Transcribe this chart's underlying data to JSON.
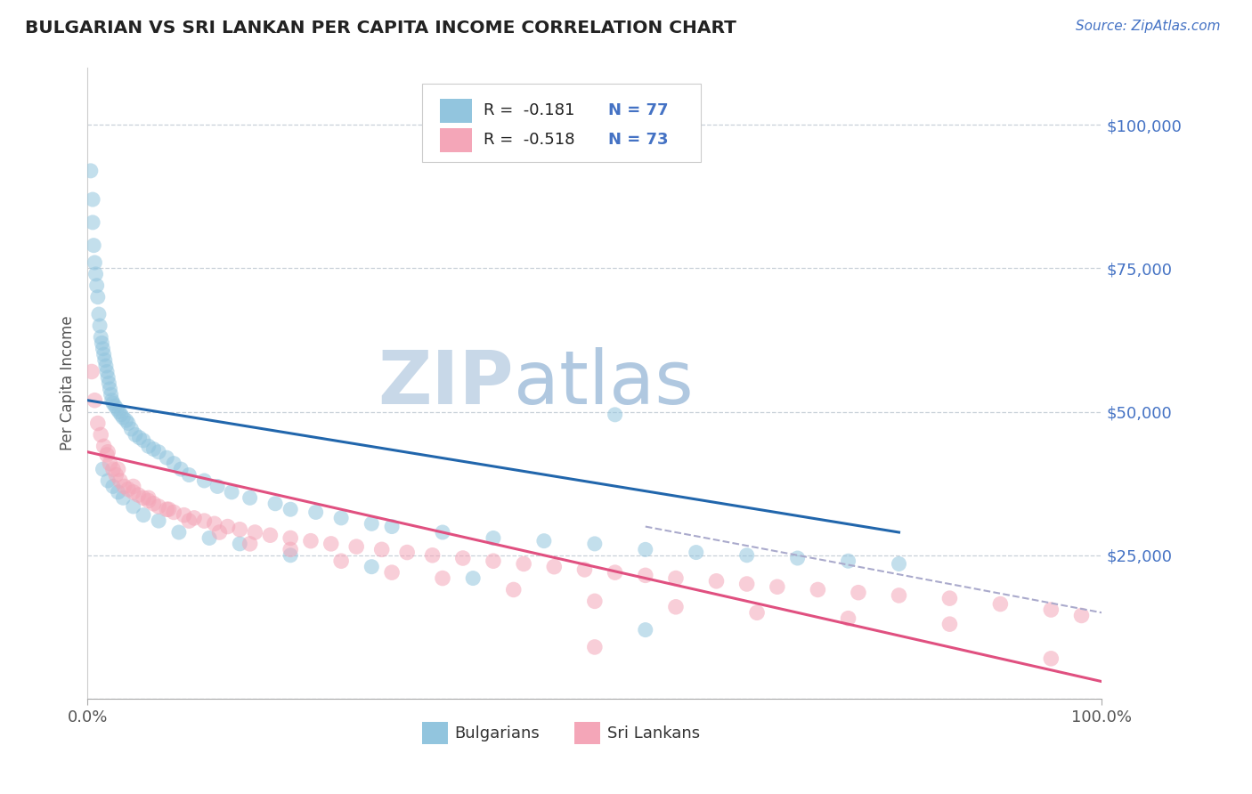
{
  "title": "BULGARIAN VS SRI LANKAN PER CAPITA INCOME CORRELATION CHART",
  "source": "Source: ZipAtlas.com",
  "ylabel": "Per Capita Income",
  "xlim": [
    0,
    100
  ],
  "ylim": [
    0,
    110000
  ],
  "yticks": [
    0,
    25000,
    50000,
    75000,
    100000
  ],
  "ytick_labels": [
    "",
    "$25,000",
    "$50,000",
    "$75,000",
    "$100,000"
  ],
  "legend_r1": "R =  -0.181",
  "legend_n1": "N = 77",
  "legend_r2": "R =  -0.518",
  "legend_n2": "N = 73",
  "blue_color": "#92c5de",
  "pink_color": "#f4a6b8",
  "blue_line_color": "#2166ac",
  "pink_line_color": "#e05080",
  "dash_line_color": "#aaaacc",
  "watermark_zip": "ZIP",
  "watermark_atlas": "atlas",
  "watermark_color_zip": "#c8d8e8",
  "watermark_color_atlas": "#b0c8e0",
  "background_color": "#ffffff",
  "grid_color": "#c8d0d8",
  "title_color": "#222222",
  "source_color": "#4472c4",
  "legend_r_color": "#222222",
  "legend_n_color": "#4472c4",
  "blue_scatter_x": [
    0.3,
    0.5,
    0.5,
    0.6,
    0.7,
    0.8,
    0.9,
    1.0,
    1.1,
    1.2,
    1.3,
    1.4,
    1.5,
    1.6,
    1.7,
    1.8,
    1.9,
    2.0,
    2.1,
    2.2,
    2.3,
    2.4,
    2.5,
    2.7,
    2.9,
    3.1,
    3.3,
    3.5,
    3.8,
    4.0,
    4.3,
    4.7,
    5.1,
    5.5,
    6.0,
    6.5,
    7.0,
    7.8,
    8.5,
    9.2,
    10.0,
    11.5,
    12.8,
    14.2,
    16.0,
    18.5,
    20.0,
    22.5,
    25.0,
    28.0,
    30.0,
    35.0,
    40.0,
    45.0,
    50.0,
    55.0,
    60.0,
    65.0,
    70.0,
    75.0,
    80.0,
    52.0,
    1.5,
    2.0,
    2.5,
    3.0,
    3.5,
    4.5,
    5.5,
    7.0,
    9.0,
    12.0,
    15.0,
    20.0,
    28.0,
    38.0,
    55.0
  ],
  "blue_scatter_y": [
    92000,
    87000,
    83000,
    79000,
    76000,
    74000,
    72000,
    70000,
    67000,
    65000,
    63000,
    62000,
    61000,
    60000,
    59000,
    58000,
    57000,
    56000,
    55000,
    54000,
    53000,
    52000,
    51500,
    51000,
    50500,
    50000,
    49500,
    49000,
    48500,
    48000,
    47000,
    46000,
    45500,
    45000,
    44000,
    43500,
    43000,
    42000,
    41000,
    40000,
    39000,
    38000,
    37000,
    36000,
    35000,
    34000,
    33000,
    32500,
    31500,
    30500,
    30000,
    29000,
    28000,
    27500,
    27000,
    26000,
    25500,
    25000,
    24500,
    24000,
    23500,
    49500,
    40000,
    38000,
    37000,
    36000,
    35000,
    33500,
    32000,
    31000,
    29000,
    28000,
    27000,
    25000,
    23000,
    21000,
    12000
  ],
  "pink_scatter_x": [
    0.4,
    0.7,
    1.0,
    1.3,
    1.6,
    1.9,
    2.2,
    2.5,
    2.8,
    3.2,
    3.6,
    4.0,
    4.5,
    5.0,
    5.5,
    6.0,
    6.5,
    7.0,
    7.8,
    8.5,
    9.5,
    10.5,
    11.5,
    12.5,
    13.8,
    15.0,
    16.5,
    18.0,
    20.0,
    22.0,
    24.0,
    26.5,
    29.0,
    31.5,
    34.0,
    37.0,
    40.0,
    43.0,
    46.0,
    49.0,
    52.0,
    55.0,
    58.0,
    62.0,
    65.0,
    68.0,
    72.0,
    76.0,
    80.0,
    85.0,
    90.0,
    95.0,
    98.0,
    2.0,
    3.0,
    4.5,
    6.0,
    8.0,
    10.0,
    13.0,
    16.0,
    20.0,
    25.0,
    30.0,
    35.0,
    42.0,
    50.0,
    58.0,
    66.0,
    75.0,
    85.0,
    50.0,
    95.0
  ],
  "pink_scatter_y": [
    57000,
    52000,
    48000,
    46000,
    44000,
    42500,
    41000,
    40000,
    39000,
    38000,
    37000,
    36500,
    36000,
    35500,
    35000,
    34500,
    34000,
    33500,
    33000,
    32500,
    32000,
    31500,
    31000,
    30500,
    30000,
    29500,
    29000,
    28500,
    28000,
    27500,
    27000,
    26500,
    26000,
    25500,
    25000,
    24500,
    24000,
    23500,
    23000,
    22500,
    22000,
    21500,
    21000,
    20500,
    20000,
    19500,
    19000,
    18500,
    18000,
    17500,
    16500,
    15500,
    14500,
    43000,
    40000,
    37000,
    35000,
    33000,
    31000,
    29000,
    27000,
    26000,
    24000,
    22000,
    21000,
    19000,
    17000,
    16000,
    15000,
    14000,
    13000,
    9000,
    7000
  ],
  "blue_line": {
    "x0": 0,
    "x1": 80,
    "y0": 52000,
    "y1": 29000
  },
  "pink_line": {
    "x0": 0,
    "x1": 100,
    "y0": 43000,
    "y1": 3000
  },
  "dash_line": {
    "x0": 55,
    "x1": 100,
    "y0": 30000,
    "y1": 15000
  }
}
